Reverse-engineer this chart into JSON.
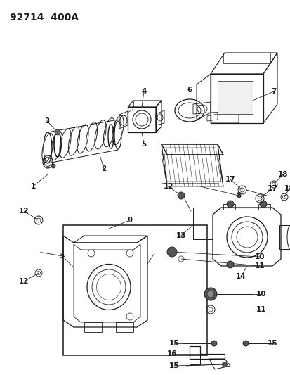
{
  "title": "92714  400A",
  "bg_color": "#ffffff",
  "line_color": "#1a1a1a",
  "title_fontsize": 10,
  "label_fontsize": 7.5,
  "fig_width": 4.14,
  "fig_height": 5.33,
  "dpi": 100
}
